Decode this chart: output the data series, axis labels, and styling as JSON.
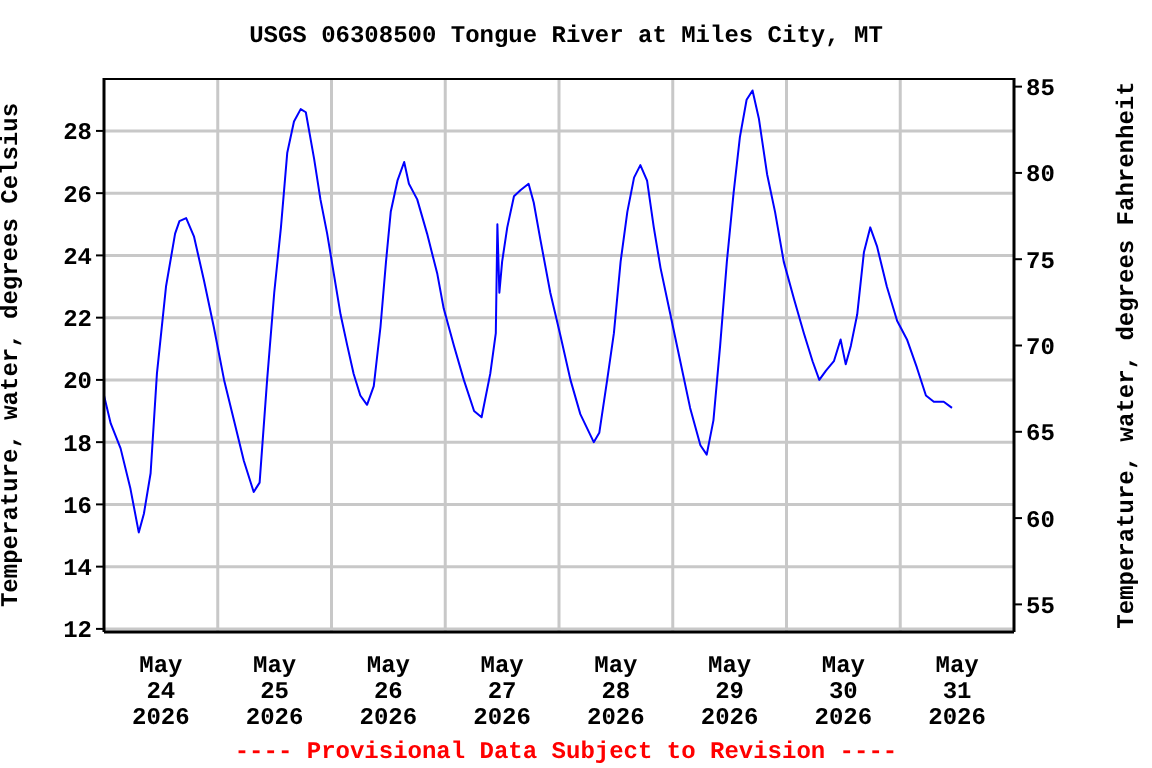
{
  "chart_data": {
    "type": "line",
    "title": "USGS 06308500 Tongue River at Miles City, MT",
    "ylabel": "Temperature, water, degrees Celsius",
    "y2label": "Temperature, water, degrees Fahrenheit",
    "annotations": [
      "---- Provisional Data Subject to Revision ----"
    ],
    "x": [
      "2026-05-24T00:00",
      "2026-05-24T01:25",
      "2026-05-24T03:30",
      "2026-05-24T05:35",
      "2026-05-24T07:20",
      "2026-05-24T08:25",
      "2026-05-24T09:50",
      "2026-05-24T11:10",
      "2026-05-24T13:05",
      "2026-05-24T15:00",
      "2026-05-24T15:55",
      "2026-05-24T17:20",
      "2026-05-24T19:00",
      "2026-05-24T21:05",
      "2026-05-24T23:10",
      "2026-05-25T01:20",
      "2026-05-25T03:25",
      "2026-05-25T05:30",
      "2026-05-25T07:35",
      "2026-05-25T08:50",
      "2026-05-25T10:25",
      "2026-05-25T11:55",
      "2026-05-25T13:20",
      "2026-05-25T14:40",
      "2026-05-25T16:05",
      "2026-05-25T17:30",
      "2026-05-25T18:35",
      "2026-05-25T20:20",
      "2026-05-25T21:40",
      "2026-05-25T23:05",
      "2026-05-26T00:30",
      "2026-05-26T01:55",
      "2026-05-26T03:20",
      "2026-05-26T04:40",
      "2026-05-26T06:05",
      "2026-05-26T07:30",
      "2026-05-26T08:55",
      "2026-05-26T10:20",
      "2026-05-26T11:30",
      "2026-05-26T12:30",
      "2026-05-26T13:55",
      "2026-05-26T15:20",
      "2026-05-26T16:20",
      "2026-05-26T18:05",
      "2026-05-26T20:10",
      "2026-05-26T22:20",
      "2026-05-26T23:40",
      "2026-05-27T01:50",
      "2026-05-27T03:55",
      "2026-05-27T06:05",
      "2026-05-27T07:40",
      "2026-05-27T09:30",
      "2026-05-27T10:40",
      "2026-05-27T11:00",
      "2026-05-27T11:25",
      "2026-05-27T12:00",
      "2026-05-27T13:05",
      "2026-05-27T14:30",
      "2026-05-27T15:55",
      "2026-05-27T17:35",
      "2026-05-27T18:40",
      "2026-05-27T20:05",
      "2026-05-27T22:10",
      "2026-05-28T00:20",
      "2026-05-28T02:25",
      "2026-05-28T04:30",
      "2026-05-28T07:20",
      "2026-05-28T08:30",
      "2026-05-28T10:10",
      "2026-05-28T11:35",
      "2026-05-28T13:00",
      "2026-05-28T14:25",
      "2026-05-28T15:50",
      "2026-05-28T17:10",
      "2026-05-28T18:35",
      "2026-05-28T20:00",
      "2026-05-28T21:25",
      "2026-05-28T23:30",
      "2026-05-29T01:35",
      "2026-05-29T03:40",
      "2026-05-29T05:50",
      "2026-05-29T07:10",
      "2026-05-29T08:35",
      "2026-05-29T10:00",
      "2026-05-29T11:25",
      "2026-05-29T12:50",
      "2026-05-29T14:10",
      "2026-05-29T15:35",
      "2026-05-29T16:50",
      "2026-05-29T18:10",
      "2026-05-29T19:55",
      "2026-05-29T21:35",
      "2026-05-29T23:25",
      "2026-05-30T01:35",
      "2026-05-30T03:40",
      "2026-05-30T05:30",
      "2026-05-30T06:55",
      "2026-05-30T08:20",
      "2026-05-30T10:00",
      "2026-05-30T11:25",
      "2026-05-30T12:30",
      "2026-05-30T13:35",
      "2026-05-30T14:55",
      "2026-05-30T16:20",
      "2026-05-30T17:40",
      "2026-05-30T19:05",
      "2026-05-30T21:10",
      "2026-05-30T23:20",
      "2026-05-31T01:25",
      "2026-05-31T03:30",
      "2026-05-31T05:25",
      "2026-05-31T07:05",
      "2026-05-31T09:10",
      "2026-05-31T10:55"
    ],
    "series": [
      {
        "color": "#0000ff",
        "values": [
          19.5,
          18.6,
          17.8,
          16.5,
          15.1,
          15.7,
          17.0,
          20.2,
          23.0,
          24.7,
          25.1,
          25.2,
          24.6,
          23.2,
          21.7,
          20.0,
          18.7,
          17.4,
          16.4,
          16.7,
          20.0,
          22.8,
          24.9,
          27.3,
          28.3,
          28.7,
          28.6,
          27.1,
          25.8,
          24.7,
          23.4,
          22.1,
          21.1,
          20.2,
          19.5,
          19.2,
          19.8,
          21.7,
          23.8,
          25.4,
          26.4,
          27.0,
          26.3,
          25.8,
          24.7,
          23.4,
          22.3,
          21.1,
          20.0,
          19.0,
          18.8,
          20.2,
          21.5,
          25.0,
          22.8,
          23.8,
          24.9,
          25.9,
          26.1,
          26.3,
          25.7,
          24.5,
          22.8,
          21.4,
          20.0,
          18.9,
          18.0,
          18.3,
          20.0,
          21.5,
          23.8,
          25.4,
          26.5,
          26.9,
          26.4,
          24.9,
          23.6,
          22.1,
          20.6,
          19.1,
          17.9,
          17.6,
          18.7,
          21.1,
          23.8,
          26.0,
          27.8,
          29.0,
          29.3,
          28.4,
          26.6,
          25.4,
          23.8,
          22.6,
          21.5,
          20.6,
          20.0,
          20.3,
          20.6,
          21.3,
          20.5,
          21.1,
          22.1,
          24.1,
          24.9,
          24.3,
          23.0,
          21.9,
          21.3,
          20.4,
          19.5,
          19.3,
          19.3,
          19.1
        ]
      }
    ],
    "xlim": [
      "2026-05-24T00:00",
      "2026-06-01T00:00"
    ],
    "xticks": [
      {
        "value": "2026-05-24T12:00",
        "label": "May 24 2026"
      },
      {
        "value": "2026-05-25T00:00",
        "label": null
      },
      {
        "value": "2026-05-25T12:00",
        "label": "May 25 2026"
      },
      {
        "value": "2026-05-26T00:00",
        "label": null
      },
      {
        "value": "2026-05-26T12:00",
        "label": "May 26 2026"
      },
      {
        "value": "2026-05-27T00:00",
        "label": null
      },
      {
        "value": "2026-05-27T12:00",
        "label": "May 27 2026"
      },
      {
        "value": "2026-05-28T00:00",
        "label": null
      },
      {
        "value": "2026-05-28T12:00",
        "label": "May 28 2026"
      },
      {
        "value": "2026-05-29T00:00",
        "label": null
      },
      {
        "value": "2026-05-29T12:00",
        "label": "May 29 2026"
      },
      {
        "value": "2026-05-30T00:00",
        "label": null
      },
      {
        "value": "2026-05-30T12:00",
        "label": "May 30 2026"
      },
      {
        "value": "2026-05-31T00:00",
        "label": null
      },
      {
        "value": "2026-05-31T12:00",
        "label": "May 31 2026"
      }
    ],
    "ylim": [
      11.9,
      29.7
    ],
    "yticks": [
      12,
      14,
      16,
      18,
      20,
      22,
      24,
      26,
      28
    ],
    "y2lim": [
      53.4,
      85.5
    ],
    "y2ticks": [
      55,
      60,
      65,
      70,
      75,
      80,
      85
    ],
    "grid": true
  }
}
